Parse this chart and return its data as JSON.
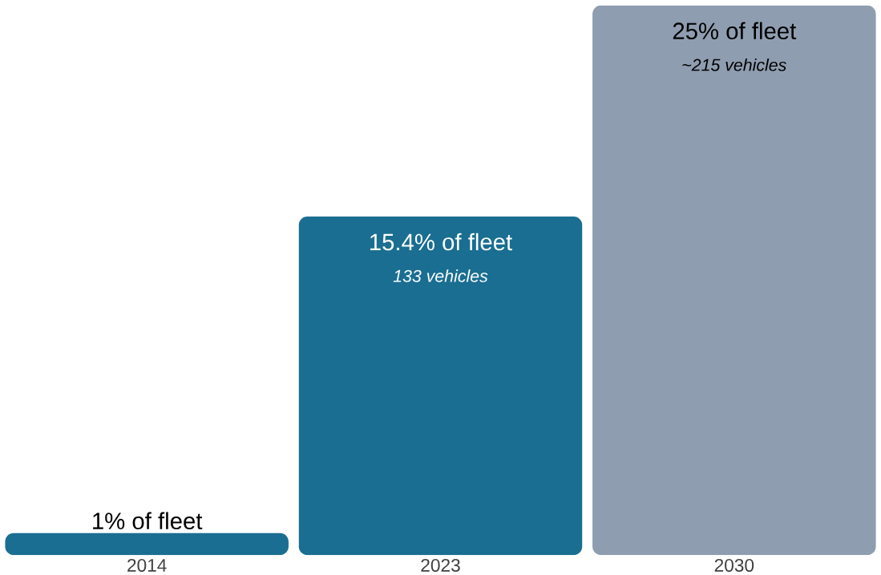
{
  "chart_data": {
    "type": "bar",
    "categories": [
      "2014",
      "2023",
      "2030"
    ],
    "values": [
      1,
      15.4,
      25
    ],
    "colors": [
      "#1a6e91",
      "#1a6e91",
      "#8f9db0"
    ],
    "value_labels": [
      "1% of fleet",
      "15.4% of fleet",
      "25% of fleet"
    ],
    "annotations": [
      "133 vehicles",
      "~215 vehicles"
    ],
    "tick_labels": "x"
  }
}
